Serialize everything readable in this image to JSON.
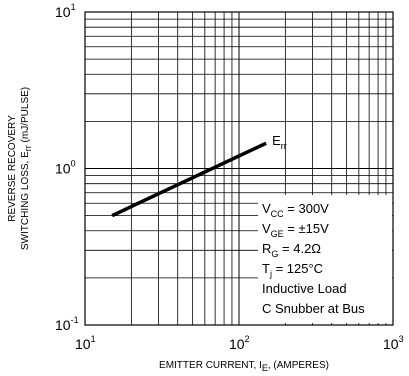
{
  "chart_data": {
    "type": "line",
    "x_scale": "log",
    "y_scale": "log",
    "xlim": [
      10,
      1000
    ],
    "ylim": [
      0.1,
      10
    ],
    "grid": true,
    "x_ticks": [
      {
        "value": 10,
        "base": "10",
        "exp": "1"
      },
      {
        "value": 100,
        "base": "10",
        "exp": "2"
      },
      {
        "value": 1000,
        "base": "10",
        "exp": "3"
      }
    ],
    "y_ticks": [
      {
        "value": 0.1,
        "base": "10",
        "exp": "-1"
      },
      {
        "value": 1,
        "base": "10",
        "exp": "0"
      },
      {
        "value": 10,
        "base": "10",
        "exp": "1"
      }
    ],
    "xlabel": {
      "main": "EMITTER CURRENT, I",
      "sub": "E",
      "tail": ", (AMPERES)"
    },
    "ylabel": {
      "line1": "REVERSE RECOVERY",
      "line2_main": "SWITCHING LOSS, E",
      "line2_sub": "rr",
      "line2_tail": " (mJ/PULSE)"
    },
    "series": [
      {
        "name_main": "E",
        "name_sub": "rr",
        "x": [
          15,
          150
        ],
        "y": [
          0.5,
          1.45
        ]
      }
    ],
    "conditions": [
      {
        "main": "V",
        "sub": "CC",
        "tail": " = 300V"
      },
      {
        "main": "V",
        "sub": "GE",
        "tail": " = ±15V"
      },
      {
        "main": "R",
        "sub": "G",
        "tail": " = 4.2Ω"
      },
      {
        "main": "T",
        "sub": "j",
        "tail": " = 125°C"
      },
      {
        "main": "Inductive Load",
        "sub": "",
        "tail": ""
      },
      {
        "main": "C Snubber at Bus",
        "sub": "",
        "tail": ""
      }
    ]
  }
}
